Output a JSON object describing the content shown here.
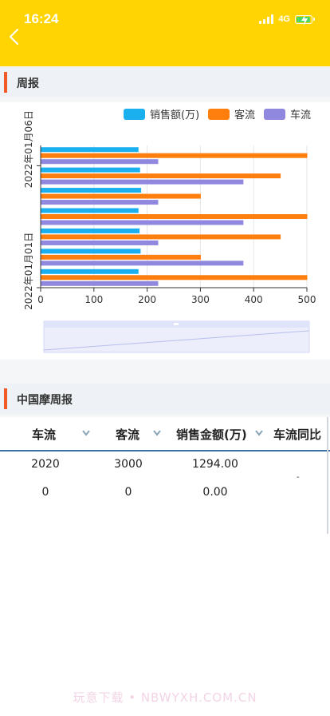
{
  "status": {
    "time": "16:24",
    "network": "4G"
  },
  "weekly": {
    "title": "周报",
    "legend": [
      {
        "label": "销售额(万)",
        "color": "#1ab0f0"
      },
      {
        "label": "客流",
        "color": "#ff7f0e"
      },
      {
        "label": "车流",
        "color": "#8f88de"
      }
    ]
  },
  "chart_data": {
    "type": "bar",
    "orientation": "horizontal",
    "categories": [
      "2022年01月01日",
      "",
      "",
      "",
      "",
      "",
      "2022年01月06日"
    ],
    "series": [
      {
        "name": "销售额(万)",
        "color": "#1ab0f0",
        "values": [
          183,
          187,
          185,
          183,
          188,
          186,
          183
        ]
      },
      {
        "name": "客流",
        "color": "#ff7f0e",
        "values": [
          500,
          300,
          450,
          500,
          300,
          450,
          500
        ]
      },
      {
        "name": "车流",
        "color": "#8f88de",
        "values": [
          220,
          380,
          220,
          380,
          220,
          380,
          220
        ]
      }
    ],
    "xlim": [
      0,
      500
    ],
    "xticks": [
      "0",
      "100",
      "200",
      "300",
      "400",
      "500"
    ],
    "grid": true,
    "legend_position": "top-right"
  },
  "table": {
    "title": "中国摩周报",
    "columns": [
      "车流",
      "客流",
      "销售金额(万)",
      "车流同比"
    ],
    "rows": [
      [
        "2020",
        "3000",
        "1294.00",
        ""
      ],
      [
        "0",
        "0",
        "0.00",
        ""
      ]
    ],
    "dash": "-"
  },
  "watermark": "玩意下载 • NBWYXH.COM.CN"
}
